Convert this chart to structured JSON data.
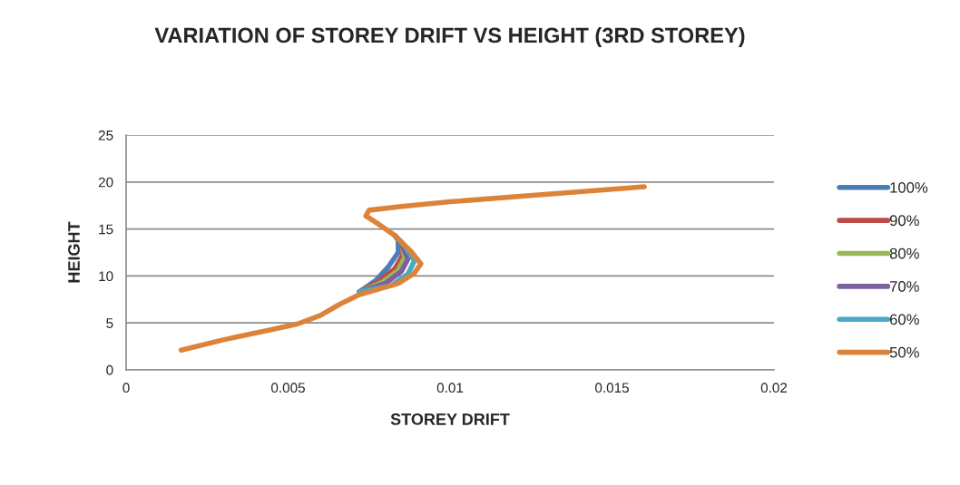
{
  "chart_data": {
    "type": "line",
    "title": "VARIATION OF STOREY DRIFT VS HEIGHT (3RD STOREY)",
    "xlabel": "STOREY DRIFT",
    "ylabel": "HEIGHT",
    "xlim": [
      0,
      0.02
    ],
    "xticks": [
      0,
      0.005,
      0.01,
      0.015,
      0.02
    ],
    "ylim": [
      0,
      25
    ],
    "yticks": [
      0,
      5,
      10,
      15,
      20,
      25
    ],
    "grid": "y",
    "legend": "right",
    "marker": "none",
    "line_style": "solid",
    "series": [
      {
        "name": "100%",
        "color": "#4a7ebb",
        "x": [
          0.0072,
          0.0077,
          0.0081,
          0.0084,
          0.0084,
          0.0083
        ],
        "values": [
          8.3,
          9.5,
          11,
          12.5,
          13.8,
          14.3
        ]
      },
      {
        "name": "90%",
        "color": "#be4b48",
        "x": [
          0.0072,
          0.0078,
          0.0083,
          0.00855,
          0.0085,
          0.0083
        ],
        "values": [
          8.3,
          9.4,
          10.8,
          12.3,
          13.6,
          14.3
        ]
      },
      {
        "name": "80%",
        "color": "#98b954",
        "x": [
          0.0072,
          0.0079,
          0.0084,
          0.0086,
          0.0085,
          0.0083
        ],
        "values": [
          8.3,
          9.3,
          10.6,
          12.0,
          13.5,
          14.3
        ]
      },
      {
        "name": "70%",
        "color": "#7d60a0",
        "x": [
          0.0072,
          0.008,
          0.0085,
          0.0087,
          0.0085,
          0.0083
        ],
        "values": [
          8.3,
          9.2,
          10.5,
          11.8,
          13.4,
          14.3
        ]
      },
      {
        "name": "60%",
        "color": "#46aac5",
        "x": [
          0.0072,
          0.0082,
          0.0087,
          0.0089,
          0.0086,
          0.0083
        ],
        "values": [
          8.3,
          9.0,
          10.2,
          11.6,
          13.2,
          14.3
        ]
      },
      {
        "name": "50%",
        "color": "#dd8339",
        "x": [
          0.0017,
          0.003,
          0.0045,
          0.0053,
          0.006,
          0.0066,
          0.0072,
          0.0084,
          0.0089,
          0.0091,
          0.0088,
          0.0085,
          0.0083,
          0.0078,
          0.0074,
          0.0075,
          0.0085,
          0.01,
          0.013,
          0.016
        ],
        "values": [
          2.1,
          3.2,
          4.3,
          4.9,
          5.8,
          7.0,
          8.0,
          9.2,
          10.3,
          11.3,
          12.6,
          13.6,
          14.3,
          15.5,
          16.4,
          17.0,
          17.4,
          17.9,
          18.7,
          19.5
        ]
      }
    ]
  }
}
